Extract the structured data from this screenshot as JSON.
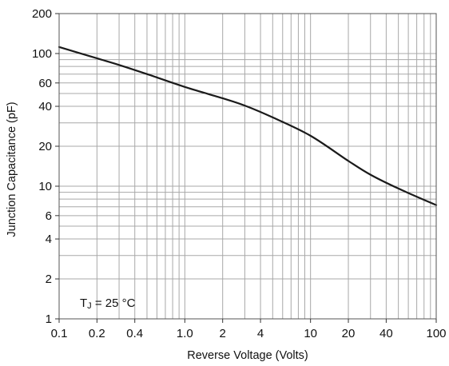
{
  "chart_data": {
    "type": "line",
    "title": "",
    "xlabel": "Reverse Voltage (Volts)",
    "ylabel": "Junction Capacitance (pF)",
    "xscale": "log",
    "yscale": "log",
    "xlim": [
      0.1,
      100
    ],
    "ylim": [
      1,
      200
    ],
    "grid": true,
    "x_tick_labels": [
      "0.1",
      "0.2",
      "0.4",
      "1.0",
      "2",
      "4",
      "10",
      "20",
      "40",
      "100"
    ],
    "x_tick_values": [
      0.1,
      0.2,
      0.4,
      1,
      2,
      4,
      10,
      20,
      40,
      100
    ],
    "y_tick_labels": [
      "1",
      "2",
      "4",
      "6",
      "10",
      "20",
      "40",
      "60",
      "100",
      "200"
    ],
    "y_tick_values": [
      1,
      2,
      4,
      6,
      10,
      20,
      40,
      60,
      100,
      200
    ],
    "annotation": {
      "main": "T",
      "sub": "J",
      "rest": " = 25 °C"
    },
    "series": [
      {
        "x": [
          0.1,
          0.2,
          0.3,
          0.5,
          1,
          2,
          3,
          5,
          10,
          20,
          30,
          50,
          100
        ],
        "y": [
          112,
          92,
          82,
          70,
          56,
          46,
          40.5,
          33,
          24,
          15.5,
          12.2,
          9.6,
          7.2
        ]
      }
    ],
    "line_color": "#1a1a1a",
    "grid_color": "#a8a8a8"
  }
}
